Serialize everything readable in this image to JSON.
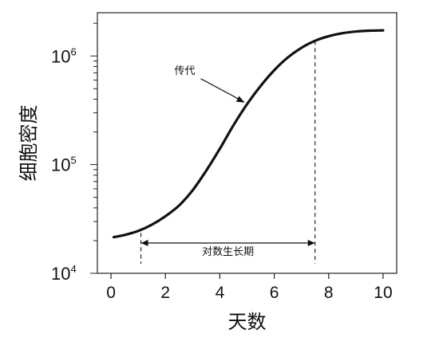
{
  "chart_data": {
    "type": "line",
    "xlabel": "天数",
    "ylabel": "细胞密度",
    "xlim": [
      -0.5,
      10.5
    ],
    "ylim": [
      10000,
      2500000
    ],
    "y_scale": "log",
    "x_ticks": [
      0,
      2,
      4,
      6,
      8,
      10
    ],
    "y_ticks": [
      {
        "value": 10000,
        "base": "10",
        "exp": "4"
      },
      {
        "value": 100000,
        "base": "10",
        "exp": "5"
      },
      {
        "value": 1000000,
        "base": "10",
        "exp": "6"
      }
    ],
    "grid": false,
    "series": [
      {
        "x": [
          0.1,
          0.5,
          1.0,
          1.5,
          2.0,
          2.5,
          3.0,
          3.5,
          4.0,
          4.5,
          5.0,
          5.5,
          6.0,
          6.5,
          7.0,
          7.5,
          8.0,
          8.5,
          9.0,
          9.5,
          10.0
        ],
        "y": [
          21500,
          22500,
          24500,
          28000,
          33500,
          42000,
          58000,
          88000,
          140000,
          230000,
          360000,
          530000,
          740000,
          970000,
          1190000,
          1380000,
          1520000,
          1620000,
          1680000,
          1710000,
          1720000
        ]
      }
    ],
    "annotations": {
      "passage_label": "传代",
      "passage_x": 5.0,
      "log_phase_label": "对数生长期",
      "log_phase_start": 1.1,
      "log_phase_end": 7.5
    }
  }
}
